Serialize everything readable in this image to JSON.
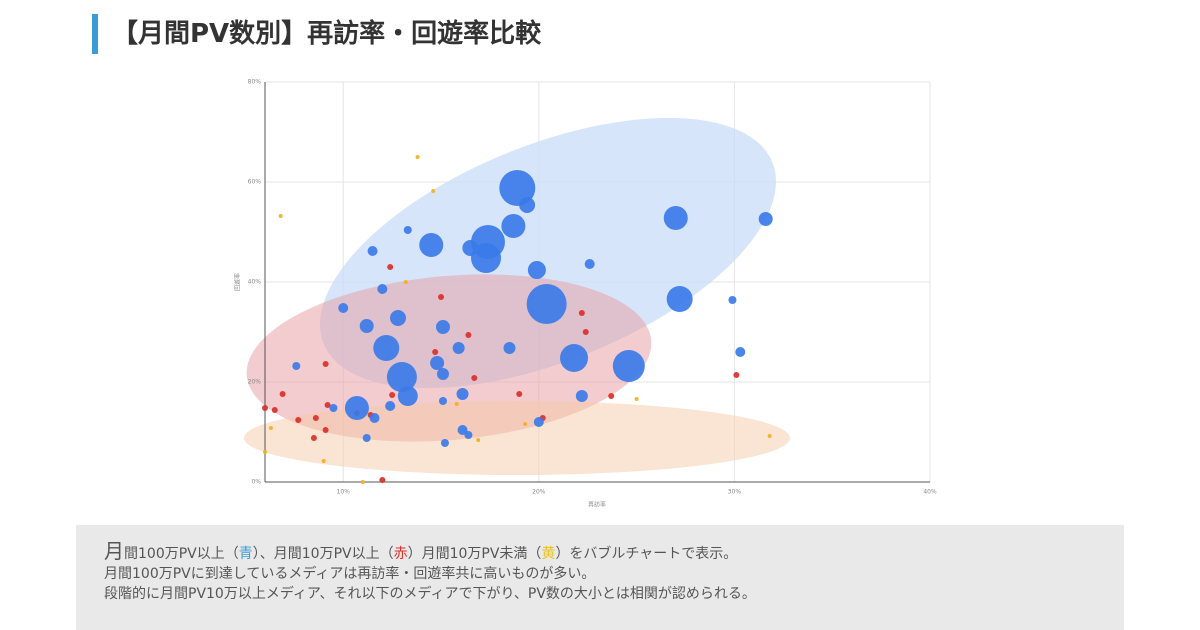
{
  "header": {
    "title": "【月間PV数別】再訪率・回遊率比較"
  },
  "chart_data": {
    "type": "bubble",
    "x_label": "再訪率",
    "y_label": "回遊率",
    "xlim": [
      6,
      40
    ],
    "ylim": [
      0,
      80
    ],
    "xticks": [
      {
        "value": 10,
        "label": "10%"
      },
      {
        "value": 20,
        "label": "20%"
      },
      {
        "value": 30,
        "label": "30%"
      },
      {
        "value": 40,
        "label": "40%"
      }
    ],
    "yticks": [
      {
        "value": 0,
        "label": "0%"
      },
      {
        "value": 20,
        "label": "20%"
      },
      {
        "value": 40,
        "label": "40%"
      },
      {
        "value": 60,
        "label": "60%"
      },
      {
        "value": 80,
        "label": "80%"
      }
    ],
    "grid": true,
    "series": [
      {
        "color": "#3b7be8",
        "x": [
          18.9,
          19.4,
          27.0,
          31.6,
          18.7,
          17.4,
          17.3,
          14.5,
          16.5,
          11.5,
          13.3,
          19.9,
          22.6,
          12.0,
          27.2,
          20.4,
          29.9,
          10.0,
          12.8,
          11.2,
          15.1,
          12.2,
          15.9,
          18.5,
          21.8,
          24.6,
          30.3,
          14.8,
          15.1,
          13.0,
          7.6,
          13.3,
          16.1,
          10.7,
          12.4,
          9.5,
          11.6,
          15.1,
          22.2,
          20.0,
          16.1,
          16.4,
          11.2,
          15.2
        ],
        "values": [
          58.8,
          55.4,
          52.8,
          52.6,
          51.2,
          48.0,
          44.8,
          47.4,
          46.8,
          46.2,
          50.4,
          42.4,
          43.6,
          38.6,
          36.6,
          35.6,
          36.4,
          34.8,
          32.8,
          31.2,
          31.0,
          26.8,
          26.8,
          26.8,
          24.8,
          23.2,
          26.0,
          23.8,
          21.6,
          21.0,
          23.2,
          17.2,
          17.6,
          14.8,
          15.2,
          14.8,
          12.8,
          16.2,
          17.2,
          12.0,
          10.4,
          9.4,
          8.8,
          7.8
        ],
        "sizes": [
          18,
          8,
          12,
          7,
          12,
          17,
          15,
          12,
          8,
          5,
          4,
          9,
          5,
          5,
          13,
          20,
          4,
          5,
          8,
          7,
          7,
          13,
          6,
          6,
          14,
          16,
          5,
          7,
          6,
          15,
          4,
          10,
          6,
          12,
          5,
          4,
          5,
          4,
          6,
          5,
          5,
          4,
          4,
          4
        ]
      },
      {
        "color": "#d9302a",
        "x": [
          6.0,
          6.5,
          6.9,
          9.2,
          8.6,
          7.7,
          9.1,
          8.5,
          11.4,
          12.4,
          15.0,
          22.2,
          22.4,
          16.4,
          14.7,
          16.7,
          23.7,
          19.0,
          30.1,
          12.5,
          10.7,
          12.0,
          20.2,
          9.1
        ],
        "values": [
          14.8,
          14.4,
          17.6,
          15.4,
          12.8,
          12.4,
          10.4,
          8.8,
          13.4,
          43.0,
          37.0,
          33.8,
          30.0,
          29.4,
          26.0,
          20.8,
          17.2,
          17.6,
          21.4,
          17.4,
          13.8,
          0.4,
          12.8,
          23.6
        ],
        "sizes": [
          3,
          3,
          3,
          3,
          3,
          3,
          3,
          3,
          3,
          3,
          3,
          3,
          3,
          3,
          3,
          3,
          3,
          3,
          3,
          3,
          3,
          3,
          3,
          3
        ]
      },
      {
        "color": "#f2b01e",
        "x": [
          13.8,
          6.8,
          14.6,
          13.2,
          6.3,
          9.0,
          11.0,
          16.9,
          31.8,
          25.0,
          19.3,
          15.8,
          6.0
        ],
        "values": [
          65.0,
          53.2,
          58.2,
          40.0,
          10.8,
          4.2,
          0,
          8.4,
          9.2,
          16.6,
          11.6,
          15.6,
          6.0
        ],
        "sizes": [
          2,
          2,
          2,
          2,
          2,
          2,
          2,
          2,
          2,
          2,
          2,
          2,
          2
        ]
      }
    ]
  },
  "caption": {
    "line1": [
      "月",
      "間100万PV以上（",
      "青",
      "）、月間10万PV以上（",
      "赤",
      "）月間10万PV未満（",
      "黄",
      "）をバブルチャートで表示。"
    ],
    "line2": "月間100万PVに到達しているメディアは再訪率・回遊率共に高いものが多い。",
    "line3": "段階的に月間PV10万以上メディア、それ以下のメディアで下がり、PV数の大小とは相関が認められる。"
  }
}
